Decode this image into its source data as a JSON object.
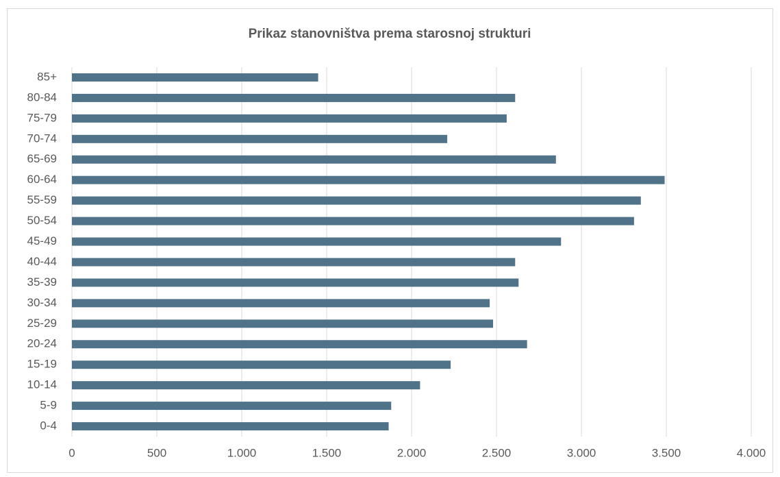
{
  "chart_data": {
    "type": "hbar",
    "title": "Prikaz stanovništva prema starosnoj strukturi",
    "categories": [
      "0-4",
      "5-9",
      "10-14",
      "15-19",
      "20-24",
      "25-29",
      "30-34",
      "35-39",
      "40-44",
      "45-49",
      "50-54",
      "55-59",
      "60-64",
      "65-69",
      "70-74",
      "75-79",
      "80-84",
      "85+"
    ],
    "values": [
      1865,
      1880,
      2050,
      2230,
      2680,
      2480,
      2460,
      2630,
      2610,
      2880,
      3310,
      3350,
      3490,
      2850,
      2210,
      2560,
      2610,
      1450
    ],
    "color": "#50738a",
    "xlim": [
      0,
      4000
    ],
    "xticks": [
      0,
      500,
      {
        "value": 1000,
        "label": "1.000"
      },
      {
        "value": 1500,
        "label": "1.500"
      },
      {
        "value": 2000,
        "label": "2.000"
      },
      {
        "value": 2500,
        "label": "2.500"
      },
      {
        "value": 3000,
        "label": "3.000"
      },
      {
        "value": 3500,
        "label": "3.500"
      },
      {
        "value": 4000,
        "label": "4.000"
      }
    ],
    "grid": true
  }
}
